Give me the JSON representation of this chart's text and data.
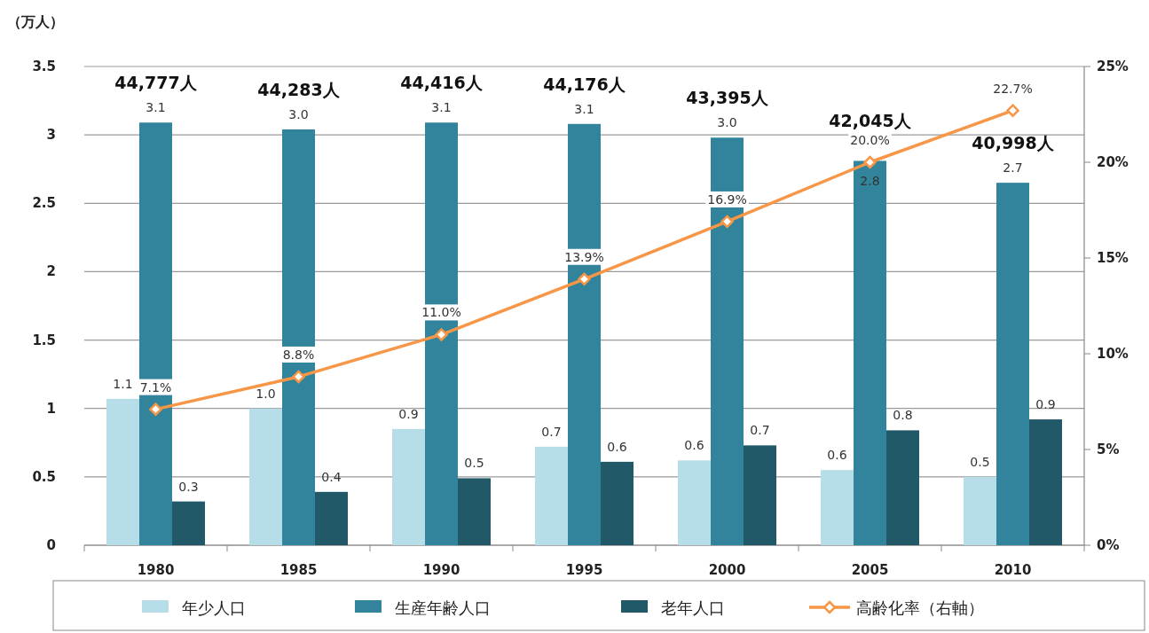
{
  "chart_data": {
    "type": "bar",
    "ylabel": "（万人）",
    "categories": [
      "1980",
      "1985",
      "1990",
      "1995",
      "2000",
      "2005",
      "2010"
    ],
    "series": [
      {
        "name": "年少人口",
        "color": "#b7dde8",
        "values": [
          1.07,
          1.0,
          0.85,
          0.72,
          0.62,
          0.55,
          0.5
        ],
        "value_labels": [
          "1.1",
          "1.0",
          "0.9",
          "0.7",
          "0.6",
          "0.6",
          "0.5"
        ]
      },
      {
        "name": "生産年齢人口",
        "color": "#31849b",
        "values": [
          3.09,
          3.04,
          3.09,
          3.08,
          2.98,
          2.81,
          2.65
        ],
        "value_labels": [
          "3.1",
          "3.0",
          "3.1",
          "3.1",
          "3.0",
          "2.8",
          "2.7"
        ]
      },
      {
        "name": "老年人口",
        "color": "#215968",
        "values": [
          0.32,
          0.39,
          0.49,
          0.61,
          0.73,
          0.84,
          0.92
        ],
        "value_labels": [
          "0.3",
          "0.4",
          "0.5",
          "0.6",
          "0.7",
          "0.8",
          "0.9"
        ]
      },
      {
        "name": "高齢化率（右軸）",
        "type": "line",
        "axis": "y2",
        "color": "#f79646",
        "values": [
          7.1,
          8.8,
          11.0,
          13.9,
          16.9,
          20.0,
          22.7
        ],
        "value_labels": [
          "7.1%",
          "8.8%",
          "11.0%",
          "13.9%",
          "16.9%",
          "20.0%",
          "22.7%"
        ]
      }
    ],
    "annotations": [
      "44,777人",
      "44,283人",
      "44,416人",
      "44,176人",
      "43,395人",
      "42,045人",
      "40,998人"
    ],
    "ylim": [
      0,
      3.5
    ],
    "yticks": [
      0,
      0.5,
      1,
      1.5,
      2,
      2.5,
      3,
      3.5
    ],
    "y2lim": [
      0,
      25
    ],
    "y2ticks": [
      {
        "value": 0,
        "label": "0%"
      },
      {
        "value": 5,
        "label": "5%"
      },
      {
        "value": 10,
        "label": "10%"
      },
      {
        "value": 15,
        "label": "15%"
      },
      {
        "value": 20,
        "label": "20%"
      },
      {
        "value": 25,
        "label": "25%"
      }
    ],
    "grid": "y",
    "legend": "bottom",
    "marker": "diamond",
    "line_style": "solid"
  }
}
